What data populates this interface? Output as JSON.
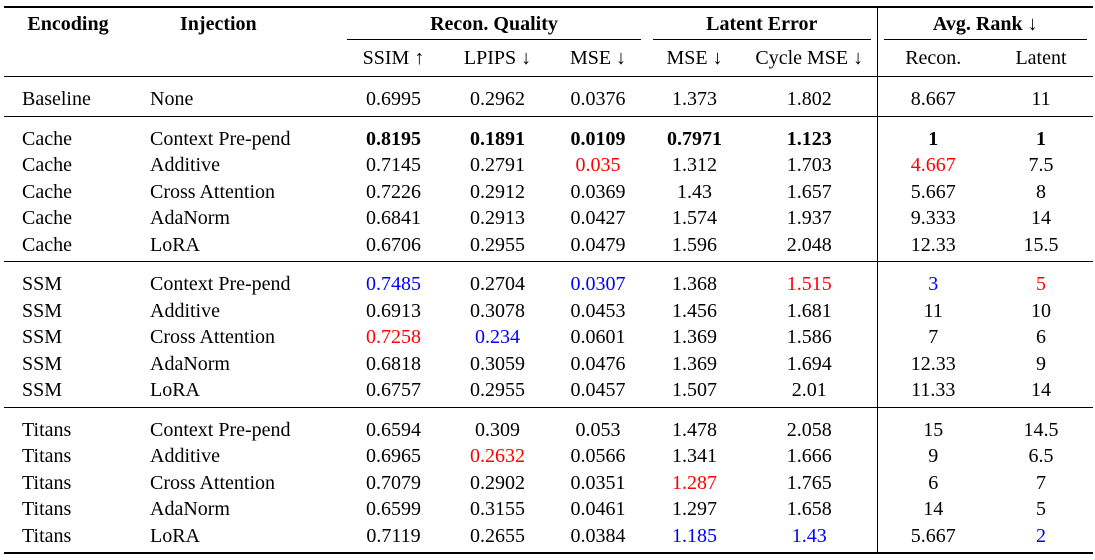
{
  "columns": {
    "encoding": "Encoding",
    "injection": "Injection",
    "recon_group": "Recon. Quality",
    "latent_group": "Latent Error",
    "rank_group": "Avg. Rank ↓",
    "ssim": "SSIM ↑",
    "lpips": "LPIPS ↓",
    "mse": "MSE ↓",
    "latent_mse": "MSE ↓",
    "cycle_mse": "Cycle MSE ↓",
    "rank_recon": "Recon.",
    "rank_latent": "Latent"
  },
  "rows": [
    {
      "enc": "Baseline",
      "inj": "None",
      "v": [
        "0.6995",
        "0.2962",
        "0.0376",
        "1.373",
        "1.802",
        "8.667",
        "11"
      ],
      "s": [
        "",
        "",
        "",
        "",
        "",
        "",
        ""
      ]
    },
    {
      "enc": "Cache",
      "inj": "Context Pre-pend",
      "v": [
        "0.8195",
        "0.1891",
        "0.0109",
        "0.7971",
        "1.123",
        "1",
        "1"
      ],
      "s": [
        "b",
        "b",
        "b",
        "b",
        "b",
        "b",
        "b"
      ]
    },
    {
      "enc": "Cache",
      "inj": "Additive",
      "v": [
        "0.7145",
        "0.2791",
        "0.035",
        "1.312",
        "1.703",
        "4.667",
        "7.5"
      ],
      "s": [
        "",
        "",
        "red",
        "",
        "",
        "red",
        ""
      ]
    },
    {
      "enc": "Cache",
      "inj": "Cross Attention",
      "v": [
        "0.7226",
        "0.2912",
        "0.0369",
        "1.43",
        "1.657",
        "5.667",
        "8"
      ],
      "s": [
        "",
        "",
        "",
        "",
        "",
        "",
        ""
      ]
    },
    {
      "enc": "Cache",
      "inj": "AdaNorm",
      "v": [
        "0.6841",
        "0.2913",
        "0.0427",
        "1.574",
        "1.937",
        "9.333",
        "14"
      ],
      "s": [
        "",
        "",
        "",
        "",
        "",
        "",
        ""
      ]
    },
    {
      "enc": "Cache",
      "inj": "LoRA",
      "v": [
        "0.6706",
        "0.2955",
        "0.0479",
        "1.596",
        "2.048",
        "12.33",
        "15.5"
      ],
      "s": [
        "",
        "",
        "",
        "",
        "",
        "",
        ""
      ]
    },
    {
      "enc": "SSM",
      "inj": "Context Pre-pend",
      "v": [
        "0.7485",
        "0.2704",
        "0.0307",
        "1.368",
        "1.515",
        "3",
        "5"
      ],
      "s": [
        "blue",
        "",
        "blue",
        "",
        "red",
        "blue",
        "red"
      ]
    },
    {
      "enc": "SSM",
      "inj": "Additive",
      "v": [
        "0.6913",
        "0.3078",
        "0.0453",
        "1.456",
        "1.681",
        "11",
        "10"
      ],
      "s": [
        "",
        "",
        "",
        "",
        "",
        "",
        ""
      ]
    },
    {
      "enc": "SSM",
      "inj": "Cross Attention",
      "v": [
        "0.7258",
        "0.234",
        "0.0601",
        "1.369",
        "1.586",
        "7",
        "6"
      ],
      "s": [
        "red",
        "blue",
        "",
        "",
        "",
        "",
        ""
      ]
    },
    {
      "enc": "SSM",
      "inj": "AdaNorm",
      "v": [
        "0.6818",
        "0.3059",
        "0.0476",
        "1.369",
        "1.694",
        "12.33",
        "9"
      ],
      "s": [
        "",
        "",
        "",
        "",
        "",
        "",
        ""
      ]
    },
    {
      "enc": "SSM",
      "inj": "LoRA",
      "v": [
        "0.6757",
        "0.2955",
        "0.0457",
        "1.507",
        "2.01",
        "11.33",
        "14"
      ],
      "s": [
        "",
        "",
        "",
        "",
        "",
        "",
        ""
      ]
    },
    {
      "enc": "Titans",
      "inj": "Context Pre-pend",
      "v": [
        "0.6594",
        "0.309",
        "0.053",
        "1.478",
        "2.058",
        "15",
        "14.5"
      ],
      "s": [
        "",
        "",
        "",
        "",
        "",
        "",
        ""
      ]
    },
    {
      "enc": "Titans",
      "inj": "Additive",
      "v": [
        "0.6965",
        "0.2632",
        "0.0566",
        "1.341",
        "1.666",
        "9",
        "6.5"
      ],
      "s": [
        "",
        "red",
        "",
        "",
        "",
        "",
        ""
      ]
    },
    {
      "enc": "Titans",
      "inj": "Cross Attention",
      "v": [
        "0.7079",
        "0.2902",
        "0.0351",
        "1.287",
        "1.765",
        "6",
        "7"
      ],
      "s": [
        "",
        "",
        "",
        "red",
        "",
        "",
        ""
      ]
    },
    {
      "enc": "Titans",
      "inj": "AdaNorm",
      "v": [
        "0.6599",
        "0.3155",
        "0.0461",
        "1.297",
        "1.658",
        "14",
        "5"
      ],
      "s": [
        "",
        "",
        "",
        "",
        "",
        "",
        ""
      ]
    },
    {
      "enc": "Titans",
      "inj": "LoRA",
      "v": [
        "0.7119",
        "0.2655",
        "0.0384",
        "1.185",
        "1.43",
        "5.667",
        "2"
      ],
      "s": [
        "",
        "",
        "",
        "blue",
        "blue",
        "",
        "blue"
      ]
    }
  ]
}
